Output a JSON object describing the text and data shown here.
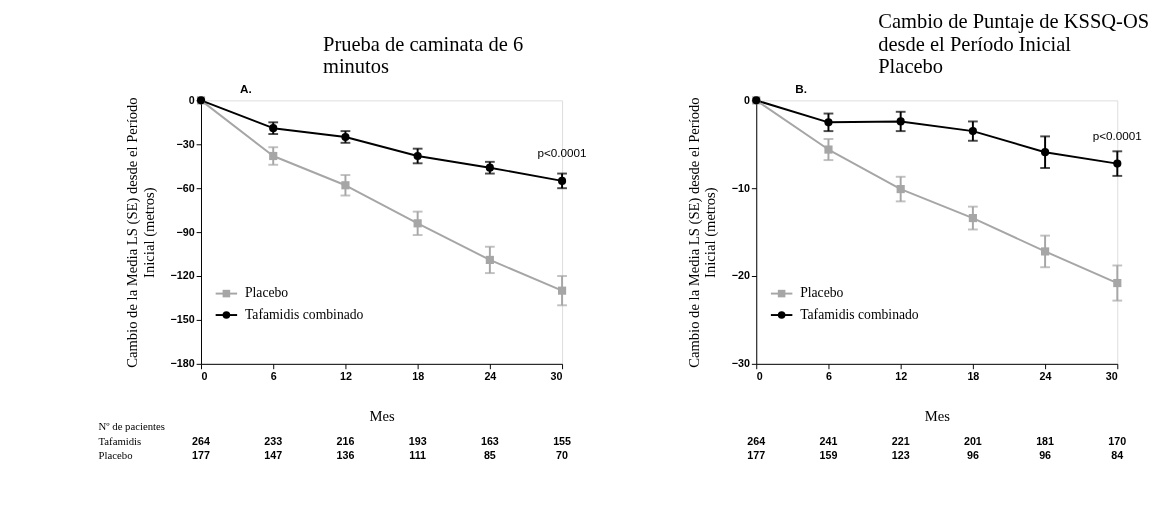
{
  "chart_data": [
    {
      "type": "line",
      "title": "Prueba de caminata de 6 minutos",
      "xlabel": "Mes",
      "ylabel": "Cambio de la Media LS (SE) desde el Período Inicial (metros)",
      "x": [
        0,
        6,
        12,
        18,
        24,
        30
      ],
      "xlim": [
        0,
        30
      ],
      "xticks": [
        0,
        6,
        12,
        18,
        24,
        30
      ],
      "ylim": [
        -180,
        0
      ],
      "yticks": [
        -180,
        -150,
        -120,
        -90,
        -60,
        -30,
        0
      ],
      "grid": false,
      "legend": "bottom left",
      "line_style": "solid",
      "series": [
        {
          "name": "Placebo",
          "color": "#a6a6a6",
          "marker": "square",
          "values": [
            0,
            -38,
            -58,
            -84,
            -109,
            -130
          ],
          "errors": [
            null,
            6,
            7,
            8,
            9,
            10
          ]
        },
        {
          "name": "Tafamidis combinado",
          "color": "#000000",
          "marker": "circle",
          "values": [
            0,
            -19,
            -25,
            -38,
            -46,
            -55
          ],
          "errors": [
            null,
            4,
            4,
            5,
            4,
            5
          ]
        }
      ],
      "annotations": [
        "A.",
        "p<0.0001",
        "Nº de pacientes",
        "Tafamidis",
        "Placebo",
        "264",
        "233",
        "216",
        "193",
        "163",
        "155",
        "177",
        "147",
        "136",
        "111",
        "85",
        "70"
      ]
    },
    {
      "type": "line",
      "title": "Cambio de Puntaje de KSSQ-OS desde el Período Inicial Placebo",
      "xlabel": "Mes",
      "ylabel": "Cambio de la Media LS (SE) desde el Período Inicial (metros)",
      "x": [
        0,
        6,
        12,
        18,
        24,
        30
      ],
      "xlim": [
        0,
        30
      ],
      "xticks": [
        0,
        6,
        12,
        18,
        24,
        30
      ],
      "ylim": [
        -30,
        0
      ],
      "yticks": [
        -30,
        -20,
        -10,
        0
      ],
      "grid": false,
      "legend": "bottom left",
      "line_style": "solid",
      "series": [
        {
          "name": "Placebo",
          "color": "#a6a6a6",
          "marker": "square",
          "values": [
            0,
            -5.6,
            -10.1,
            -13.4,
            -17.2,
            -20.8
          ],
          "errors": [
            null,
            1.2,
            1.4,
            1.3,
            1.8,
            2.0
          ]
        },
        {
          "name": "Tafamidis combinado",
          "color": "#000000",
          "marker": "circle",
          "values": [
            0,
            -2.5,
            -2.4,
            -3.5,
            -5.9,
            -7.2
          ],
          "errors": [
            null,
            1.0,
            1.1,
            1.1,
            1.8,
            1.4
          ]
        }
      ],
      "annotations": [
        "B.",
        "p<0.0001",
        "264",
        "241",
        "221",
        "201",
        "181",
        "170",
        "177",
        "159",
        "123",
        "96",
        "96",
        "84"
      ]
    }
  ]
}
